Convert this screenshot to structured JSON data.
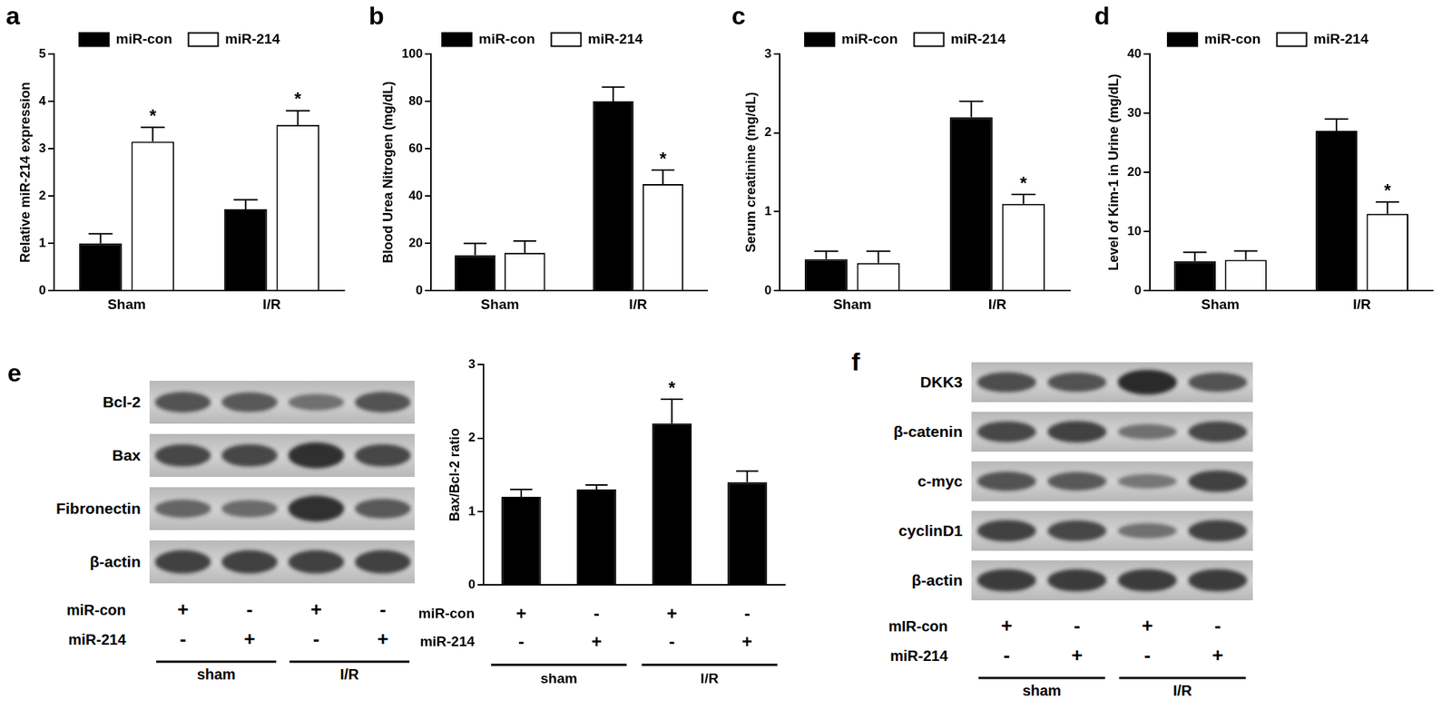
{
  "chart_data": [
    {
      "panel": "a",
      "type": "bar",
      "y_label": "Relative miR-214 expression",
      "categories": [
        "Sham",
        "I/R"
      ],
      "series": [
        {
          "name": "miR-con",
          "color": "#000000",
          "values": [
            1.0,
            1.72
          ],
          "errors": [
            0.2,
            0.2
          ],
          "significance": [
            null,
            null
          ]
        },
        {
          "name": "miR-214",
          "color": "#ffffff",
          "values": [
            3.15,
            3.5
          ],
          "errors": [
            0.3,
            0.3
          ],
          "significance": [
            "*",
            "*"
          ]
        }
      ],
      "ylim": [
        0,
        5
      ],
      "yticks": [
        0,
        1,
        2,
        3,
        4,
        5
      ],
      "grid": false,
      "legend": "top"
    },
    {
      "panel": "b",
      "type": "bar",
      "y_label": "Blood Urea Nitrogen (mg/dL)",
      "categories": [
        "Sham",
        "I/R"
      ],
      "series": [
        {
          "name": "miR-con",
          "color": "#000000",
          "values": [
            15,
            80
          ],
          "errors": [
            5,
            6
          ],
          "significance": [
            null,
            null
          ]
        },
        {
          "name": "miR-214",
          "color": "#ffffff",
          "values": [
            16,
            45
          ],
          "errors": [
            5,
            6
          ],
          "significance": [
            null,
            "*"
          ]
        }
      ],
      "ylim": [
        0,
        100
      ],
      "yticks": [
        0,
        20,
        40,
        60,
        80,
        100
      ],
      "grid": false,
      "legend": "top"
    },
    {
      "panel": "c",
      "type": "bar",
      "y_label": "Serum creatinine (mg/dL)",
      "categories": [
        "Sham",
        "I/R"
      ],
      "series": [
        {
          "name": "miR-con",
          "color": "#000000",
          "values": [
            0.4,
            2.2
          ],
          "errors": [
            0.1,
            0.2
          ],
          "significance": [
            null,
            null
          ]
        },
        {
          "name": "miR-214",
          "color": "#ffffff",
          "values": [
            0.35,
            1.1
          ],
          "errors": [
            0.15,
            0.12
          ],
          "significance": [
            null,
            "*"
          ]
        }
      ],
      "ylim": [
        0,
        3
      ],
      "yticks": [
        0,
        1,
        2,
        3
      ],
      "grid": false,
      "legend": "top"
    },
    {
      "panel": "d",
      "type": "bar",
      "y_label": "Level of Kim-1 in Urine (mg/dL)",
      "categories": [
        "Sham",
        "I/R"
      ],
      "series": [
        {
          "name": "miR-con",
          "color": "#000000",
          "values": [
            5,
            27
          ],
          "errors": [
            1.5,
            2
          ],
          "significance": [
            null,
            null
          ]
        },
        {
          "name": "miR-214",
          "color": "#ffffff",
          "values": [
            5.2,
            13
          ],
          "errors": [
            1.5,
            2
          ],
          "significance": [
            null,
            "*"
          ]
        }
      ],
      "ylim": [
        0,
        40
      ],
      "yticks": [
        0,
        10,
        20,
        30,
        40
      ],
      "grid": false,
      "legend": "top"
    },
    {
      "type": "bar",
      "y_label": "Bax/Bcl-2 ratio",
      "categories": [
        null,
        null,
        null,
        null
      ],
      "values": [
        1.2,
        1.3,
        2.2,
        1.4
      ],
      "errors": [
        0.1,
        0.06,
        0.33,
        0.15
      ],
      "significance": [
        null,
        null,
        "*",
        null
      ],
      "color": "#000000",
      "ylim": [
        0,
        3
      ],
      "yticks": [
        0,
        1,
        2,
        3
      ],
      "grid": false,
      "treatments": [
        {
          "label": "miR-con",
          "marks": [
            "+",
            "-",
            "+",
            "-"
          ]
        },
        {
          "label": "miR-214",
          "marks": [
            "-",
            "+",
            "-",
            "+"
          ]
        }
      ],
      "groups": [
        {
          "label": "sham",
          "lanes": 2
        },
        {
          "label": "I/R",
          "lanes": 2
        }
      ]
    }
  ],
  "blots": [
    {
      "panel": "e",
      "rows": [
        {
          "label": "Bcl-2",
          "band_intensity": [
            0.6,
            0.55,
            0.35,
            0.6
          ]
        },
        {
          "label": "Bax",
          "band_intensity": [
            0.7,
            0.7,
            0.9,
            0.7
          ]
        },
        {
          "label": "Fibronectin",
          "band_intensity": [
            0.45,
            0.4,
            0.9,
            0.55
          ]
        },
        {
          "label": "β-actin",
          "band_intensity": [
            0.75,
            0.75,
            0.75,
            0.75
          ]
        }
      ],
      "treatments": [
        {
          "label": "miR-con",
          "marks": [
            "+",
            "-",
            "+",
            "-"
          ]
        },
        {
          "label": "miR-214",
          "marks": [
            "-",
            "+",
            "-",
            "+"
          ]
        }
      ],
      "groups": [
        {
          "label": "sham",
          "lanes": 2
        },
        {
          "label": "I/R",
          "lanes": 2
        }
      ]
    },
    {
      "panel": "f",
      "rows": [
        {
          "label": "DKK3",
          "band_intensity": [
            0.65,
            0.6,
            0.95,
            0.6
          ]
        },
        {
          "label": "β-catenin",
          "band_intensity": [
            0.7,
            0.75,
            0.35,
            0.7
          ]
        },
        {
          "label": "c-myc",
          "band_intensity": [
            0.6,
            0.55,
            0.3,
            0.75
          ]
        },
        {
          "label": "cyclinD1",
          "band_intensity": [
            0.75,
            0.7,
            0.35,
            0.75
          ]
        },
        {
          "label": "β-actin",
          "band_intensity": [
            0.8,
            0.8,
            0.8,
            0.8
          ]
        }
      ],
      "treatments": [
        {
          "label": "mIR-con",
          "marks": [
            "+",
            "-",
            "+",
            "-"
          ]
        },
        {
          "label": "miR-214",
          "marks": [
            "-",
            "+",
            "-",
            "+"
          ]
        }
      ],
      "groups": [
        {
          "label": "sham",
          "lanes": 2
        },
        {
          "label": "I/R",
          "lanes": 2
        }
      ]
    }
  ]
}
